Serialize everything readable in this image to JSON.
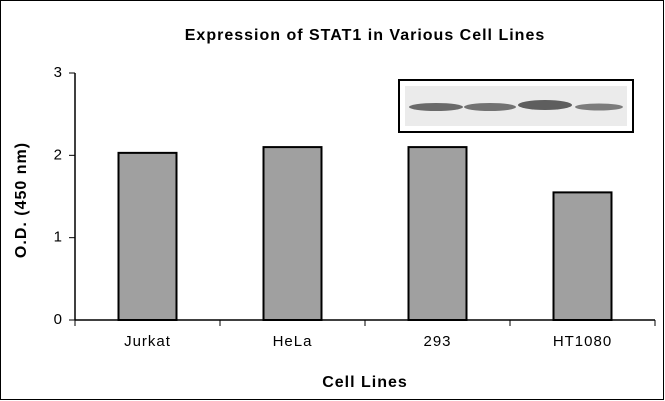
{
  "chart_data": {
    "type": "bar",
    "title": "Expression of STAT1 in Various Cell Lines",
    "x_label": "Cell Lines",
    "y_label": "O.D. (450 nm)",
    "categories": [
      "Jurkat",
      "HeLa",
      "293",
      "HT1080"
    ],
    "values": [
      2.03,
      2.1,
      2.1,
      1.55
    ],
    "color": "#a0a0a0",
    "ylim": [
      0,
      3
    ],
    "yticks": [
      0,
      1,
      2,
      3
    ]
  }
}
